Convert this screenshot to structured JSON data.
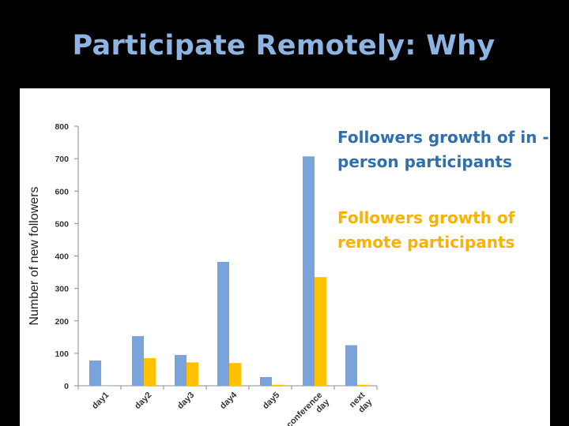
{
  "slide": {
    "title": "Participate Remotely: Why"
  },
  "colors": {
    "background": "#000000",
    "title": "#8eb4e3",
    "in_person": "#7aa3dc",
    "remote": "#ffc000",
    "legend_in_person_text": "#2f6fb0",
    "legend_remote_text": "#f9b200"
  },
  "chart_data": {
    "type": "bar",
    "title": "",
    "xlabel": "",
    "ylabel": "Number of new followers",
    "ylim": [
      0,
      800
    ],
    "yticks": [
      0,
      100,
      200,
      300,
      400,
      500,
      600,
      700,
      800
    ],
    "categories": [
      "day1",
      "day2",
      "day3",
      "day4",
      "day5",
      "conference day",
      "next day"
    ],
    "series": [
      {
        "name": "Followers growth of in -person participants",
        "values": [
          78,
          153,
          95,
          382,
          27,
          707,
          125
        ]
      },
      {
        "name": "Followers growth of remote participants",
        "values": [
          0,
          85,
          72,
          70,
          3,
          335,
          3
        ]
      }
    ],
    "legend": {
      "position": "top-right"
    },
    "grid": false
  }
}
